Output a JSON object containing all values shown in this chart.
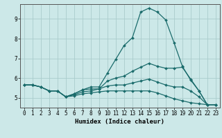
{
  "xlabel": "Humidex (Indice chaleur)",
  "bg_color": "#cce8e8",
  "line_color": "#1a6b6b",
  "grid_color": "#aacccc",
  "xlim": [
    -0.5,
    23.5
  ],
  "ylim": [
    4.5,
    9.75
  ],
  "xticks": [
    0,
    1,
    2,
    3,
    4,
    5,
    6,
    7,
    8,
    9,
    10,
    11,
    12,
    13,
    14,
    15,
    16,
    17,
    18,
    19,
    20,
    21,
    22,
    23
  ],
  "yticks": [
    5,
    6,
    7,
    8,
    9
  ],
  "lines": [
    [
      5.65,
      5.65,
      5.55,
      5.35,
      5.35,
      5.05,
      5.2,
      5.4,
      5.55,
      5.55,
      6.25,
      6.95,
      7.65,
      8.05,
      9.35,
      9.55,
      9.35,
      8.95,
      7.8,
      6.6,
      5.9,
      5.35,
      4.65,
      4.65
    ],
    [
      5.65,
      5.65,
      5.55,
      5.35,
      5.35,
      5.05,
      5.2,
      5.4,
      5.45,
      5.45,
      5.85,
      6.0,
      6.1,
      6.35,
      6.55,
      6.75,
      6.6,
      6.5,
      6.5,
      6.55,
      5.95,
      5.35,
      4.65,
      4.65
    ],
    [
      5.65,
      5.65,
      5.55,
      5.35,
      5.35,
      5.05,
      5.15,
      5.3,
      5.35,
      5.45,
      5.6,
      5.65,
      5.65,
      5.75,
      5.85,
      5.95,
      5.8,
      5.65,
      5.55,
      5.55,
      5.35,
      5.05,
      4.65,
      4.65
    ],
    [
      5.65,
      5.65,
      5.55,
      5.35,
      5.35,
      5.05,
      5.1,
      5.2,
      5.25,
      5.3,
      5.35,
      5.35,
      5.35,
      5.35,
      5.35,
      5.35,
      5.25,
      5.1,
      4.95,
      4.85,
      4.75,
      4.7,
      4.65,
      4.65
    ]
  ]
}
